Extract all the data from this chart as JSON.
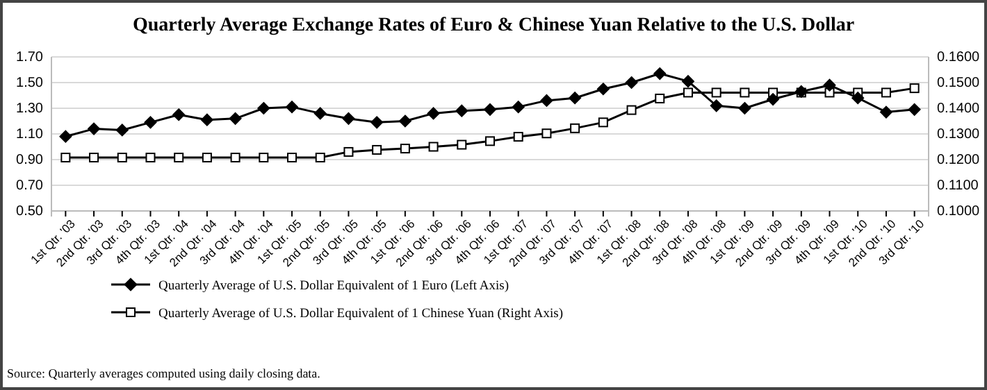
{
  "chart_data": {
    "type": "line",
    "title": "Quarterly Average Exchange Rates of Euro & Chinese Yuan Relative to the U.S. Dollar",
    "categories": [
      "1st Qtr. '03",
      "2nd Qtr. '03",
      "3rd Qtr. '03",
      "4th Qtr. '03",
      "1st Qtr. '04",
      "2nd Qtr. '04",
      "3rd Qtr. '04",
      "4th Qtr. '04",
      "1st Qtr. '05",
      "2nd Qtr. '05",
      "3rd Qtr. '05",
      "4th Qtr. '05",
      "1st Qtr. '06",
      "2nd Qtr. '06",
      "3rd Qtr. '06",
      "4th Qtr. '06",
      "1st Qtr. '07",
      "2nd Qtr. '07",
      "3rd Qtr. '07",
      "4th Qtr. '07",
      "1st Qtr. '08",
      "2nd Qtr. '08",
      "3rd Qtr. '08",
      "4th Qtr. '08",
      "1st Qtr. '09",
      "2nd Qtr. '09",
      "3rd Qtr. '09",
      "4th Qtr. '09",
      "1st Qtr. '10",
      "2nd Qtr. '10",
      "3rd Qtr. '10"
    ],
    "series": [
      {
        "name": "Quarterly Average of U.S. Dollar Equivalent of 1 Euro (Left Axis)",
        "color": "#000000",
        "marker": "diamond",
        "values": [
          1.08,
          1.14,
          1.13,
          1.19,
          1.25,
          1.21,
          1.22,
          1.3,
          1.31,
          1.26,
          1.22,
          1.19,
          1.2,
          1.26,
          1.28,
          1.29,
          1.31,
          1.36,
          1.38,
          1.45,
          1.5,
          1.57,
          1.51,
          1.32,
          1.3,
          1.37,
          1.43,
          1.48,
          1.38,
          1.27,
          1.29
        ]
      },
      {
        "name": "Quarterly Average of U.S. Dollar Equivalent of 1 Chinese Yuan (Right Axis)",
        "color": "#000000",
        "marker": "square",
        "axis": "y2",
        "values": [
          0.1208,
          0.1208,
          0.1208,
          0.1208,
          0.1208,
          0.1208,
          0.1208,
          0.1208,
          0.1208,
          0.1208,
          0.123,
          0.1238,
          0.1243,
          0.125,
          0.1258,
          0.1272,
          0.1289,
          0.1302,
          0.1322,
          0.1345,
          0.1393,
          0.1438,
          0.1461,
          0.1461,
          0.1461,
          0.1461,
          0.1461,
          0.1461,
          0.1461,
          0.1461,
          0.1478
        ]
      }
    ],
    "ylim": [
      0.5,
      1.7
    ],
    "yticks": [
      {
        "value": 0.5,
        "label": "0.50"
      },
      {
        "value": 0.7,
        "label": "0.70"
      },
      {
        "value": 0.9,
        "label": "0.90"
      },
      {
        "value": 1.1,
        "label": "1.10"
      },
      {
        "value": 1.3,
        "label": "1.30"
      },
      {
        "value": 1.5,
        "label": "1.50"
      },
      {
        "value": 1.7,
        "label": "1.70"
      }
    ],
    "y2lim": [
      0.1,
      0.16
    ],
    "y2ticks": [
      {
        "value": 0.1,
        "label": "0.1000"
      },
      {
        "value": 0.11,
        "label": "0.1100"
      },
      {
        "value": 0.12,
        "label": "0.1200"
      },
      {
        "value": 0.13,
        "label": "0.1300"
      },
      {
        "value": 0.14,
        "label": "0.1400"
      },
      {
        "value": 0.15,
        "label": "0.1500"
      },
      {
        "value": 0.16,
        "label": "0.1600"
      }
    ],
    "grid": "y",
    "legend": "bottom",
    "line_style": "solid",
    "annotations": [
      "Source:  Quarterly averages computed using daily closing data."
    ]
  }
}
